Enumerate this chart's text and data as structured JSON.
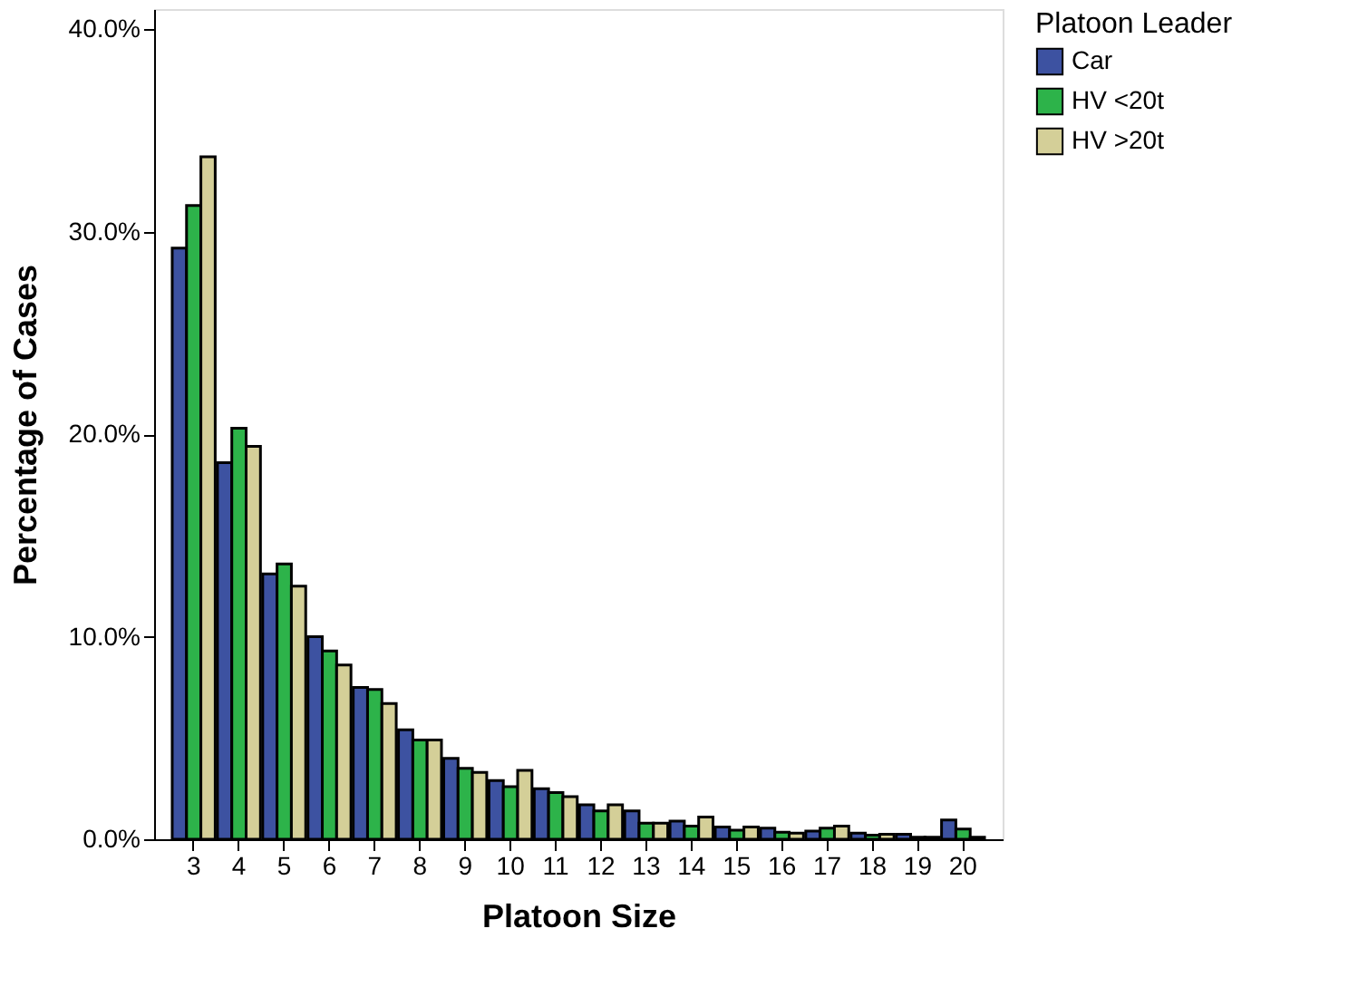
{
  "chart_data": {
    "type": "bar",
    "xlabel": "Platoon Size",
    "ylabel": "Percentage of Cases",
    "legend_title": "Platoon Leader",
    "categories": [
      "3",
      "4",
      "5",
      "6",
      "7",
      "8",
      "9",
      "10",
      "11",
      "12",
      "13",
      "14",
      "15",
      "16",
      "17",
      "18",
      "19",
      "20"
    ],
    "series": [
      {
        "name": "Car",
        "color": "#3d52a1",
        "values": [
          29.2,
          18.6,
          13.1,
          10.0,
          7.5,
          5.4,
          4.0,
          2.9,
          2.5,
          1.7,
          1.4,
          0.9,
          0.6,
          0.55,
          0.4,
          0.3,
          0.25,
          0.95
        ]
      },
      {
        "name": "HV <20t",
        "color": "#2db34a",
        "values": [
          31.3,
          20.3,
          13.6,
          9.3,
          7.4,
          4.9,
          3.5,
          2.6,
          2.3,
          1.4,
          0.8,
          0.65,
          0.45,
          0.35,
          0.55,
          0.2,
          0.1,
          0.5
        ]
      },
      {
        "name": "HV >20t",
        "color": "#d4cf98",
        "values": [
          33.7,
          19.4,
          12.5,
          8.6,
          6.7,
          4.9,
          3.3,
          3.4,
          2.1,
          1.7,
          0.8,
          1.1,
          0.6,
          0.3,
          0.65,
          0.25,
          0.1,
          0.1
        ]
      }
    ],
    "ylim": [
      0,
      41
    ],
    "yticks": [
      {
        "value": 0,
        "label": "0.0%"
      },
      {
        "value": 10,
        "label": "10.0%"
      },
      {
        "value": 20,
        "label": "20.0%"
      },
      {
        "value": 30,
        "label": "30.0%"
      },
      {
        "value": 40,
        "label": "40.0%"
      }
    ],
    "grid": false,
    "legend": "top right"
  }
}
